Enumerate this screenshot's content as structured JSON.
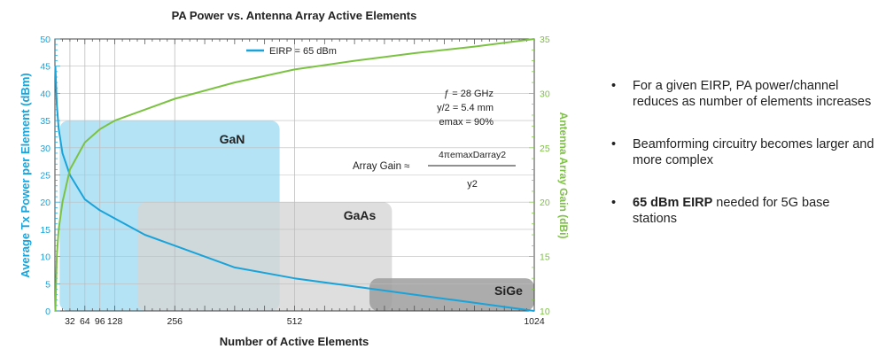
{
  "chart_data": {
    "type": "line",
    "title": "PA Power vs. Antenna Array Active Elements",
    "xlabel": "Number of Active Elements",
    "ylabel_left": "Average Tx Power per Element (dBm)",
    "ylabel_right": "Antenna Array Gain (dBi)",
    "xlim": [
      0,
      1024
    ],
    "ylim_left": [
      0,
      50
    ],
    "ylim_right": [
      10,
      35
    ],
    "x_ticks": [
      32,
      64,
      96,
      128,
      256,
      512,
      1024
    ],
    "y_left_ticks": [
      0,
      5,
      10,
      15,
      20,
      25,
      30,
      35,
      40,
      45,
      50
    ],
    "y_right_ticks": [
      10,
      15,
      20,
      25,
      30,
      35
    ],
    "grid": true,
    "legend": {
      "position": "top-center",
      "entries": [
        "EIRP = 65 dBm"
      ]
    },
    "series": [
      {
        "name": "EIRP = 65 dBm",
        "axis": "left",
        "color": "#1aa3d9",
        "x": [
          1,
          4,
          8,
          16,
          32,
          64,
          96,
          128,
          192,
          256,
          384,
          512,
          640,
          768,
          896,
          1024
        ],
        "values": [
          45,
          38,
          33.5,
          29,
          25,
          20.5,
          18.5,
          17,
          14,
          12,
          8,
          6,
          4.5,
          3,
          1.5,
          0
        ]
      },
      {
        "name": "Antenna Array Gain",
        "axis": "right",
        "color": "#7cc242",
        "x": [
          1,
          4,
          8,
          16,
          32,
          64,
          96,
          128,
          192,
          256,
          384,
          512,
          640,
          768,
          896,
          1024
        ],
        "values": [
          10,
          15,
          17.5,
          20,
          23,
          25.5,
          26.7,
          27.5,
          28.5,
          29.5,
          31,
          32.2,
          33,
          33.7,
          34.3,
          35
        ]
      }
    ],
    "regions": [
      {
        "label": "GaN",
        "color": "#a3dcf4",
        "x_range": [
          10,
          480
        ],
        "y_range": [
          0,
          35
        ]
      },
      {
        "label": "GaAs",
        "color": "#d6d6d6",
        "x_range": [
          176,
          720
        ],
        "y_range": [
          0,
          20
        ]
      },
      {
        "label": "SiGe",
        "color": "#9e9e9e",
        "x_range": [
          672,
          1024
        ],
        "y_range": [
          0,
          6
        ]
      }
    ],
    "annotations": {
      "params": [
        "ƒ = 28 GHz",
        "y/2 = 5.4 mm",
        "emax = 90%"
      ],
      "formula": {
        "lhs": "Array Gain ≈",
        "numerator": "4πemaxDarray2",
        "denominator": "y2"
      }
    }
  },
  "bullets": [
    {
      "bold": "",
      "text": "For a given EIRP, PA power/channel reduces as number of elements increases"
    },
    {
      "bold": "",
      "text": "Beamforming circuitry becomes larger and more complex"
    },
    {
      "bold": "65 dBm EIRP",
      "text": " needed for 5G base stations"
    }
  ],
  "colors": {
    "blue": "#1aa3d9",
    "green": "#7cc242",
    "text": "#222222",
    "grid": "#bdbdbd"
  }
}
